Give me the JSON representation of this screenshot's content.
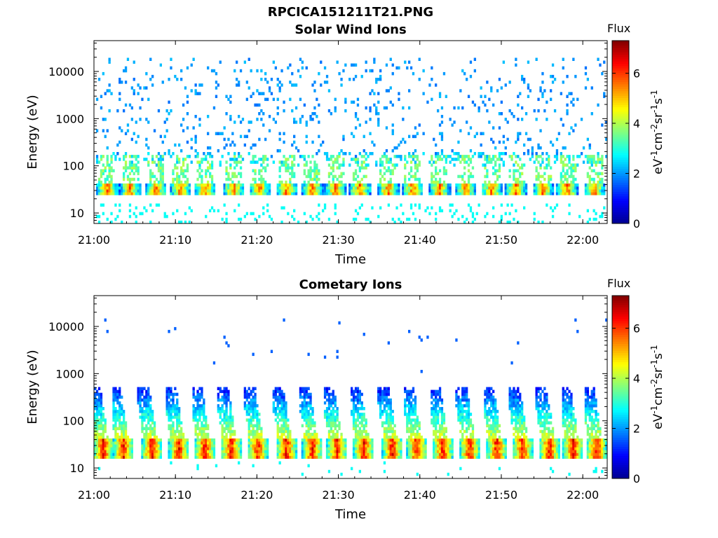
{
  "figure_title": "RPCICA151211T21.PNG",
  "colorbar_label": "Flux",
  "colorbar_unit": "eV-1cm-2sr-1s-1",
  "colormap": [
    "#00008f",
    "#0000ff",
    "#0080ff",
    "#00ffff",
    "#80ff80",
    "#ffff00",
    "#ff8000",
    "#ff0000",
    "#800000"
  ],
  "chart_data": [
    {
      "type": "heatmap",
      "title": "Solar Wind Ions",
      "xlabel": "Time",
      "ylabel": "Energy (eV)",
      "x_range": [
        "21:00",
        "22:03"
      ],
      "x_ticks": [
        "21:00",
        "21:10",
        "21:20",
        "21:30",
        "21:40",
        "21:50",
        "22:00"
      ],
      "y_scale": "log",
      "y_range": [
        6,
        45000
      ],
      "y_ticks": [
        10,
        100,
        1000,
        10000
      ],
      "y_tick_labels": [
        "10",
        "100",
        "1000",
        "10000"
      ],
      "colorbar": {
        "label": "Flux",
        "range": [
          0,
          7.3
        ],
        "ticks": [
          0,
          2,
          4,
          6
        ]
      },
      "pulse_times_min": [
        1.5,
        4.3,
        7.5,
        10.5,
        13.5,
        17,
        20.2,
        23.5,
        26.7,
        29.5,
        32.5,
        36,
        39,
        42.3,
        45.5,
        48.7,
        51.7,
        55,
        58,
        61.3
      ],
      "core_energy_eV": [
        25,
        45
      ],
      "core_flux": 5.5,
      "wing_energy_eV": [
        45,
        180
      ],
      "wing_flux": 3.5,
      "background_energy_eV": [
        150,
        20000
      ],
      "background_flux": 1.7,
      "low_streaks_energy_eV": [
        6,
        16
      ],
      "low_streaks_flux": 2.8
    },
    {
      "type": "heatmap",
      "title": "Cometary Ions",
      "xlabel": "Time",
      "ylabel": "Energy (eV)",
      "x_range": [
        "21:00",
        "22:03"
      ],
      "x_ticks": [
        "21:00",
        "21:10",
        "21:20",
        "21:30",
        "21:40",
        "21:50",
        "22:00"
      ],
      "y_scale": "log",
      "y_range": [
        6,
        45000
      ],
      "y_ticks": [
        10,
        100,
        1000,
        10000
      ],
      "y_tick_labels": [
        "10",
        "100",
        "1000",
        "10000"
      ],
      "colorbar": {
        "label": "Flux",
        "range": [
          0,
          7.3
        ],
        "ticks": [
          0,
          2,
          4,
          6
        ]
      },
      "pulse_times_min": [
        1.0,
        3.5,
        7.0,
        10.3,
        13.5,
        16.7,
        20.0,
        23.5,
        26.7,
        29.7,
        33.0,
        36.5,
        39.5,
        42.7,
        46.0,
        49.3,
        52.5,
        55.8,
        58.7,
        61.6
      ],
      "core_energy_eV": [
        17,
        45
      ],
      "core_flux": 6.3,
      "spike_energy_eV": [
        45,
        500
      ],
      "spike_flux": 4.2,
      "sparse_energy_eV": [
        1000,
        15000
      ],
      "sparse_flux": 1.6
    }
  ]
}
